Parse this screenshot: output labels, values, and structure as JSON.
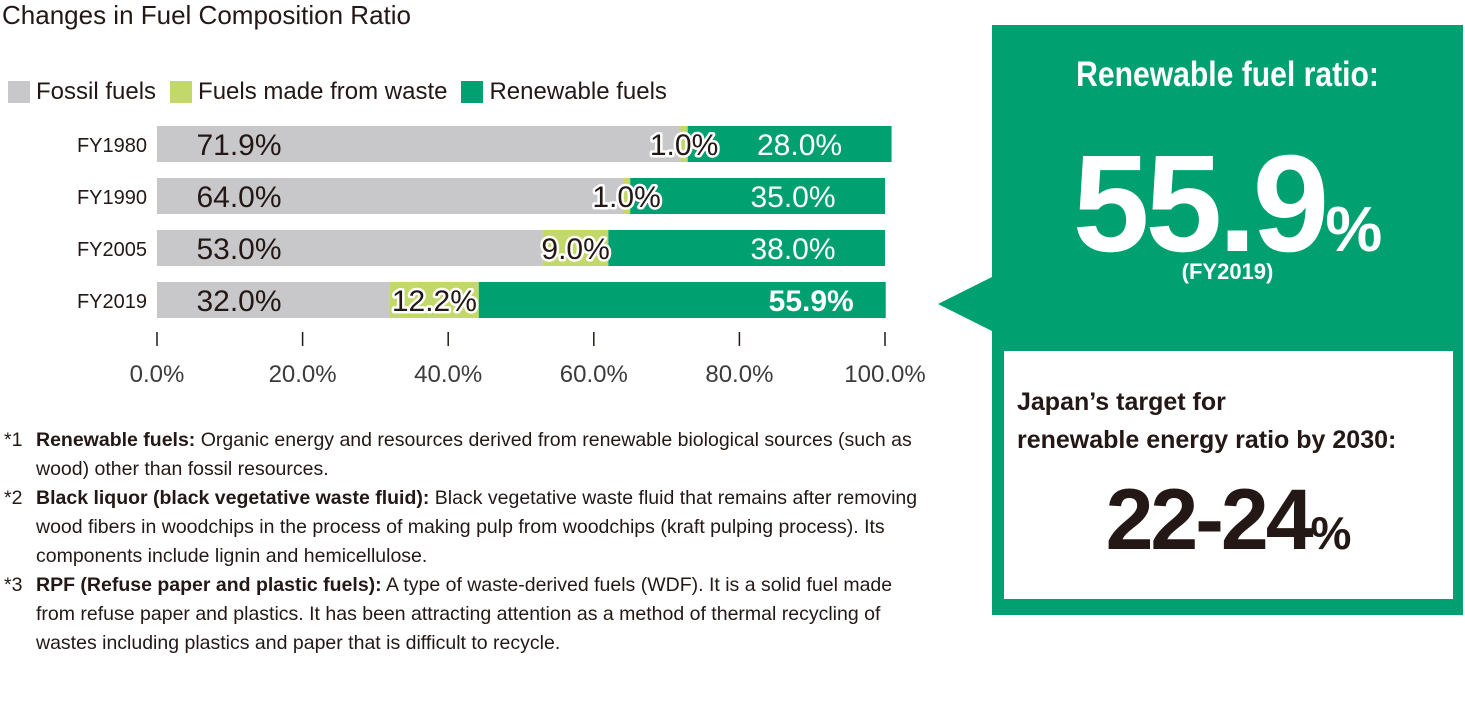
{
  "header": {
    "title": "Changes in Fuel Composition Ratio"
  },
  "colors": {
    "fossil": "#c8c8ca",
    "waste": "#c3d86a",
    "renewable": "#00a070",
    "axis": "#231815"
  },
  "chart_data": {
    "type": "bar",
    "orientation": "horizontal",
    "stacked": true,
    "title": "Changes in Fuel Composition Ratio",
    "categories": [
      "FY1980",
      "FY1990",
      "FY2005",
      "FY2019"
    ],
    "series": [
      {
        "name": "Fossil fuels",
        "values": [
          71.9,
          64.0,
          53.0,
          32.0
        ],
        "labels": [
          "71.9%",
          "64.0%",
          "53.0%",
          "32.0%"
        ]
      },
      {
        "name": "Fuels made from waste",
        "values": [
          1.0,
          1.0,
          9.0,
          12.2
        ],
        "labels": [
          "1.0%",
          "1.0%",
          "9.0%",
          "12.2%"
        ]
      },
      {
        "name": "Renewable fuels",
        "values": [
          28.0,
          35.0,
          38.0,
          55.9
        ],
        "labels": [
          "28.0%",
          "35.0%",
          "38.0%",
          "55.9%"
        ]
      }
    ],
    "xlim": [
      0,
      100
    ],
    "xticks": [
      "0.0%",
      "20.0%",
      "40.0%",
      "60.0%",
      "80.0%",
      "100.0%"
    ],
    "legend": "top",
    "grid": false
  },
  "notes": [
    {
      "mark": "*1",
      "term": "Renewable fuels:",
      "text": " Organic energy and resources derived from renewable biological sources (such as wood) other than fossil resources."
    },
    {
      "mark": "*2",
      "term": "Black liquor (black vegetative waste fluid):",
      "text": " Black vegetative waste fluid that remains after removing wood fibers in woodchips in the process of making pulp from woodchips (kraft pulping process). Its components include lignin and hemicellulose."
    },
    {
      "mark": "*3",
      "term": "RPF (Refuse paper and plastic fuels):",
      "text": " A type of waste-derived fuels (WDF). It is a solid fuel made from refuse paper and plastics. It has been attracting attention as a method of thermal recycling of wastes including plastics and paper that is difficult to recycle."
    }
  ],
  "panel": {
    "heading": "Renewable fuel ratio:",
    "value": "55.9",
    "unit": "%",
    "year": "(FY2019)",
    "target_label_line1": "Japan’s target for",
    "target_label_line2": "renewable energy ratio by 2030:",
    "target_value": "22-24",
    "target_unit": "%"
  }
}
